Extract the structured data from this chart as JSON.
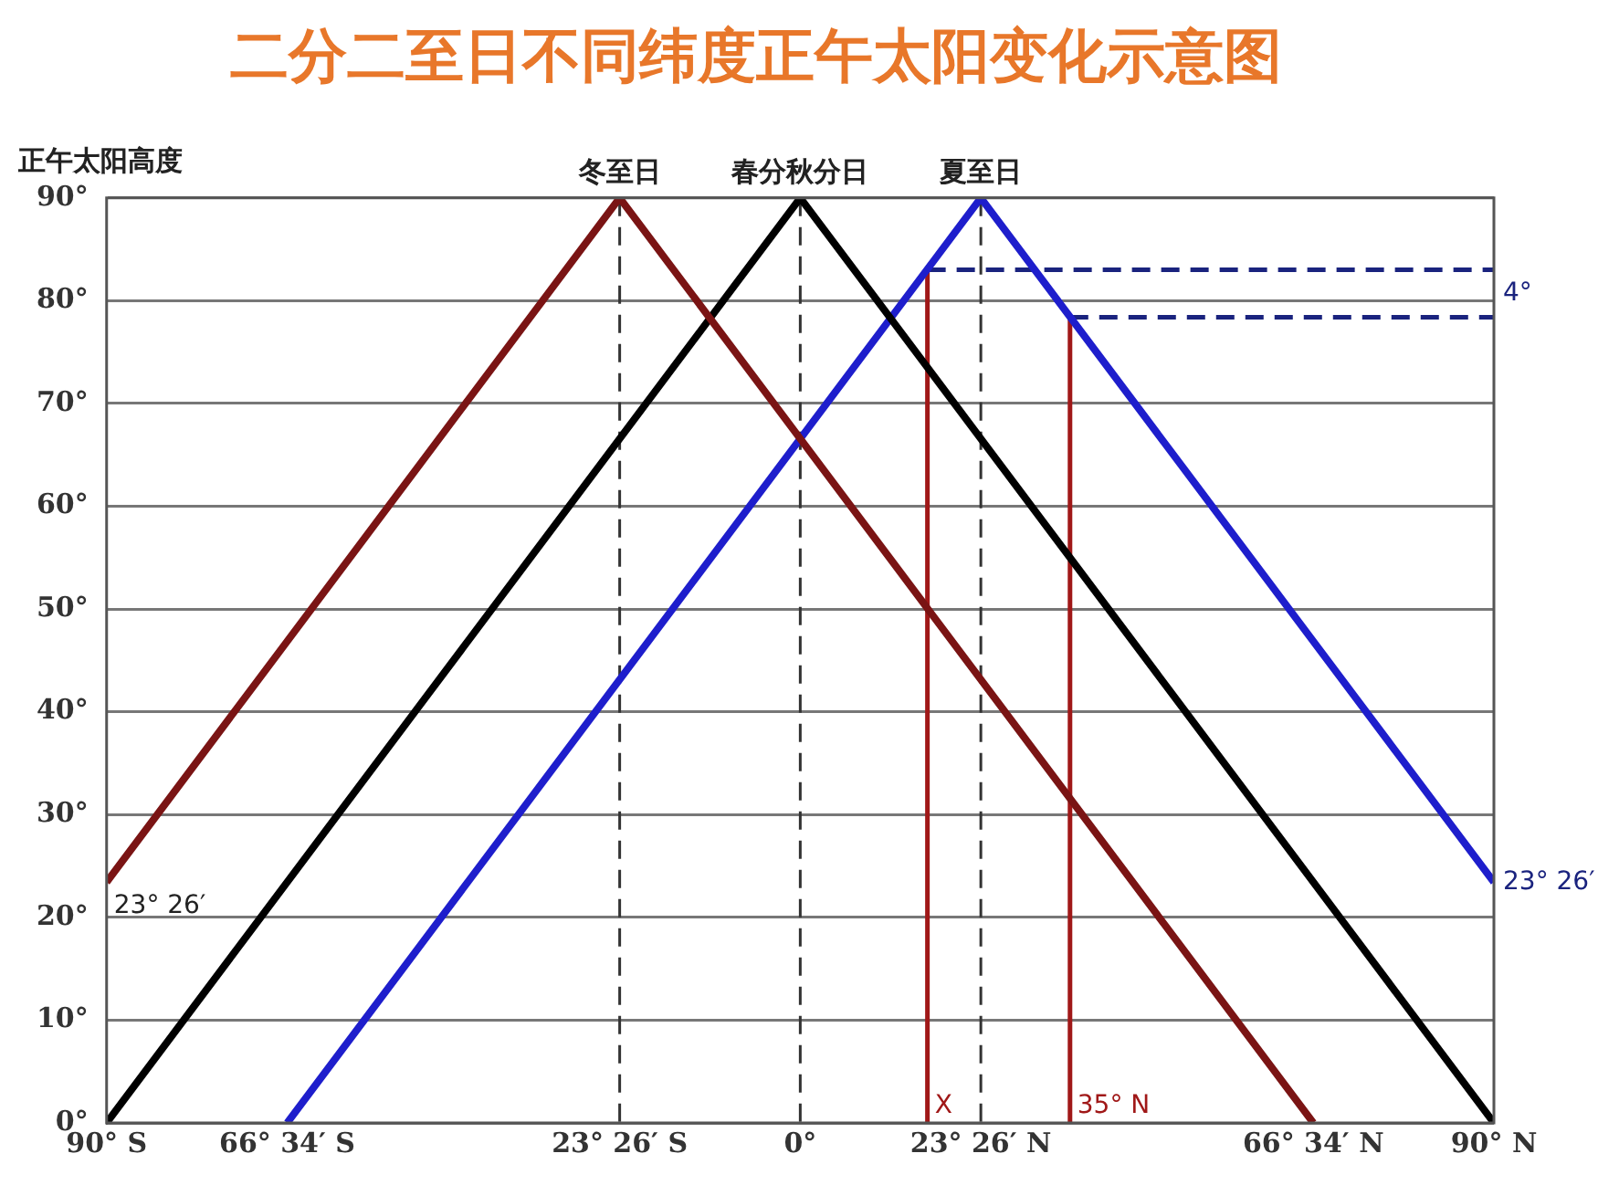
{
  "chart_data": {
    "type": "line",
    "title": "二分二至日不同纬度正午太阳变化示意图",
    "ylabel": "正午太阳高度",
    "xlim": [
      -90,
      90
    ],
    "ylim": [
      0,
      90
    ],
    "xticks": [
      {
        "value": -90,
        "label": "90° S"
      },
      {
        "value": -66.57,
        "label": "66° 34′ S"
      },
      {
        "value": -23.43,
        "label": "23° 26′ S"
      },
      {
        "value": 0,
        "label": "0°"
      },
      {
        "value": 23.43,
        "label": "23° 26′ N"
      },
      {
        "value": 66.57,
        "label": "66° 34′ N"
      },
      {
        "value": 90,
        "label": "90° N"
      }
    ],
    "yticks": [
      {
        "value": 0,
        "label": "0°"
      },
      {
        "value": 10,
        "label": "10°"
      },
      {
        "value": 20,
        "label": "20°"
      },
      {
        "value": 30,
        "label": "30°"
      },
      {
        "value": 40,
        "label": "40°"
      },
      {
        "value": 50,
        "label": "50°"
      },
      {
        "value": 60,
        "label": "60°"
      },
      {
        "value": 70,
        "label": "70°"
      },
      {
        "value": 80,
        "label": "80°"
      },
      {
        "value": 90,
        "label": "90°"
      }
    ],
    "grid": "y",
    "legend": false,
    "marker": "none",
    "line_style": "solid",
    "series": [
      {
        "name": "冬至日",
        "color": "#7a1414",
        "x": [
          -90,
          -23.43,
          66.57
        ],
        "values": [
          23.43,
          90,
          0
        ]
      },
      {
        "name": "春分秋分日",
        "color": "#000000",
        "x": [
          -90,
          0,
          90
        ],
        "values": [
          0,
          90,
          0
        ]
      },
      {
        "name": "夏至日",
        "color": "#1e1ecc",
        "x": [
          -66.57,
          23.43,
          90
        ],
        "values": [
          0,
          90,
          23.43
        ]
      },
      {
        "type": "line",
        "color": "#a01818",
        "x": [
          16.5,
          16.5
        ],
        "values": [
          0,
          83
        ]
      },
      {
        "type": "line",
        "color": "#a01818",
        "x": [
          35,
          35
        ],
        "values": [
          0,
          78.4
        ]
      },
      {
        "type": "line",
        "color": "#1a237e",
        "line_style": "dashed",
        "x": [
          16.5,
          90
        ],
        "values": [
          83,
          83
        ]
      },
      {
        "type": "line",
        "color": "#1a237e",
        "line_style": "dashed",
        "x": [
          35,
          90
        ],
        "values": [
          78.4,
          78.4
        ]
      }
    ],
    "ref_lines": [
      {
        "axis": "x",
        "value": -23.43,
        "color": "#333333",
        "line_style": "dashed"
      },
      {
        "axis": "x",
        "value": 0,
        "color": "#333333",
        "line_style": "dashed"
      },
      {
        "axis": "x",
        "value": 23.43,
        "color": "#333333",
        "line_style": "dashed"
      }
    ],
    "annotations": [
      {
        "text": "23° 26′",
        "x": -90,
        "y": 23.43
      },
      {
        "text": "23° 26′",
        "x": 90,
        "y": 23.43
      },
      {
        "text": "X",
        "x": 16.5,
        "y": 0
      },
      {
        "text": "35° N",
        "x": 35,
        "y": 0
      },
      "4°"
    ]
  }
}
